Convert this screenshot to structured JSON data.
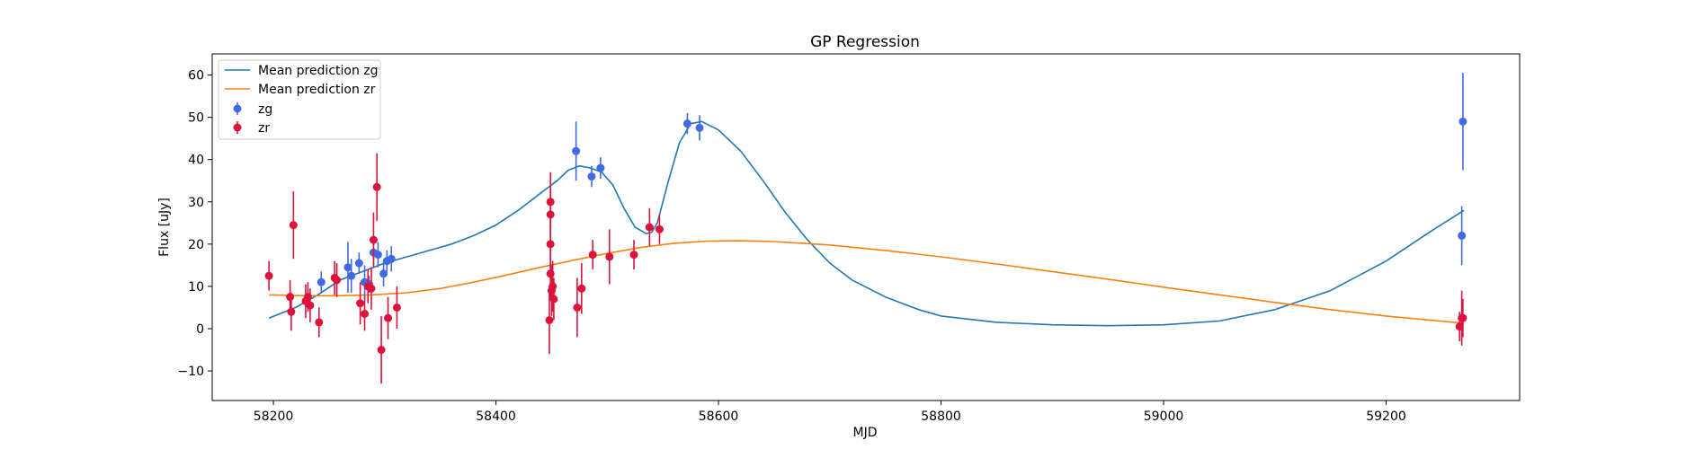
{
  "chart_data": {
    "type": "scatter",
    "title": "GP Regression",
    "xlabel": "MJD",
    "ylabel": "Flux [uJy]",
    "xlim": [
      58145,
      59320
    ],
    "ylim": [
      -17,
      65
    ],
    "xticks": [
      58200,
      58400,
      58600,
      58800,
      59000,
      59200
    ],
    "yticks": [
      -10,
      0,
      10,
      20,
      30,
      40,
      50,
      60
    ],
    "grid": false,
    "legend_position": "top-left",
    "legend": [
      "Mean prediction zg",
      "Mean prediction zr",
      "zg",
      "zr"
    ],
    "series": [
      {
        "name": "Mean prediction zg",
        "kind": "line",
        "color": "#1f77b4",
        "x": [
          58196,
          58220,
          58240,
          58260,
          58280,
          58300,
          58320,
          58340,
          58360,
          58380,
          58400,
          58420,
          58440,
          58455,
          58465,
          58475,
          58485,
          58495,
          58505,
          58515,
          58525,
          58535,
          58540,
          58545,
          58555,
          58565,
          58575,
          58585,
          58600,
          58620,
          58640,
          58660,
          58680,
          58700,
          58720,
          58750,
          58780,
          58800,
          58850,
          58900,
          58950,
          59000,
          59050,
          59100,
          59150,
          59200,
          59240,
          59270
        ],
        "y": [
          2.5,
          5,
          8,
          11.5,
          13.5,
          15.5,
          17,
          18.5,
          20,
          22,
          24.5,
          28,
          32,
          35,
          37.5,
          38.5,
          38,
          37,
          34,
          28.5,
          24,
          22.5,
          22.8,
          25,
          35,
          44,
          48.5,
          49,
          47,
          42,
          35,
          27.5,
          21,
          15.5,
          11.5,
          7.5,
          4.5,
          3,
          1.5,
          0.9,
          0.7,
          0.9,
          1.8,
          4.5,
          9,
          16,
          23,
          28
        ]
      },
      {
        "name": "Mean prediction zr",
        "kind": "line",
        "color": "#ff7f0e",
        "x": [
          58196,
          58230,
          58260,
          58290,
          58320,
          58350,
          58380,
          58410,
          58440,
          58470,
          58500,
          58530,
          58560,
          58590,
          58620,
          58650,
          58700,
          58750,
          58800,
          58850,
          58900,
          58950,
          59000,
          59050,
          59100,
          59150,
          59200,
          59240,
          59270
        ],
        "y": [
          8,
          7.8,
          7.8,
          8,
          8.5,
          9.5,
          11,
          12.7,
          14.5,
          16.2,
          17.8,
          19.2,
          20.2,
          20.7,
          20.8,
          20.6,
          19.8,
          18.5,
          17,
          15.3,
          13.5,
          11.7,
          9.8,
          8,
          6.2,
          4.5,
          3,
          2,
          1.3
        ]
      },
      {
        "name": "zg",
        "kind": "errorbar",
        "color": "#4169e1",
        "points": [
          [
            58243,
            11,
            2.5
          ],
          [
            58267,
            14.5,
            6
          ],
          [
            58270,
            12.5,
            4
          ],
          [
            58277,
            15.5,
            2.5
          ],
          [
            58282,
            11,
            4
          ],
          [
            58286,
            10.5,
            2
          ],
          [
            58290,
            18,
            3
          ],
          [
            58294,
            17.5,
            3
          ],
          [
            58299,
            13,
            3
          ],
          [
            58302,
            16,
            2.5
          ],
          [
            58306,
            16.5,
            3
          ],
          [
            58472,
            42,
            7
          ],
          [
            58486,
            36,
            2.5
          ],
          [
            58494,
            38,
            2.5
          ],
          [
            58572,
            48.5,
            2.5
          ],
          [
            58583,
            47.5,
            3
          ],
          [
            59268,
            22,
            7
          ],
          [
            59269,
            49,
            11.5
          ]
        ]
      },
      {
        "name": "zr",
        "kind": "errorbar",
        "color": "#dc143c",
        "points": [
          [
            58196,
            12.5,
            3.5
          ],
          [
            58215,
            7.5,
            4
          ],
          [
            58216,
            4,
            4.5
          ],
          [
            58218,
            24.5,
            8
          ],
          [
            58229,
            6.5,
            4
          ],
          [
            58231,
            7.5,
            3.5
          ],
          [
            58233,
            5.5,
            4
          ],
          [
            58241,
            1.5,
            3.5
          ],
          [
            58255,
            12,
            4
          ],
          [
            58257,
            11.5,
            4
          ],
          [
            58278,
            6,
            5
          ],
          [
            58282,
            3.5,
            4
          ],
          [
            58285,
            10,
            4
          ],
          [
            58288,
            9.5,
            5
          ],
          [
            58290,
            21,
            6.5
          ],
          [
            58293,
            33.5,
            8
          ],
          [
            58297,
            -5,
            8
          ],
          [
            58303,
            2.5,
            5
          ],
          [
            58311,
            5,
            5
          ],
          [
            58448,
            2,
            8
          ],
          [
            58449,
            13,
            6
          ],
          [
            58449,
            20,
            6
          ],
          [
            58449,
            27,
            6
          ],
          [
            58449,
            30,
            7
          ],
          [
            58450,
            9,
            6
          ],
          [
            58451,
            10,
            6
          ],
          [
            58452,
            7,
            5
          ],
          [
            58473,
            5,
            7
          ],
          [
            58477,
            9.5,
            6
          ],
          [
            58487,
            17.5,
            3.5
          ],
          [
            58502,
            17,
            6.5
          ],
          [
            58524,
            17.5,
            3.5
          ],
          [
            58538,
            24,
            4.5
          ],
          [
            58547,
            23.5,
            3.5
          ],
          [
            59266,
            0.5,
            3.5
          ],
          [
            59268,
            2.5,
            6.5
          ],
          [
            59269,
            2.5,
            4.5
          ]
        ]
      }
    ]
  }
}
